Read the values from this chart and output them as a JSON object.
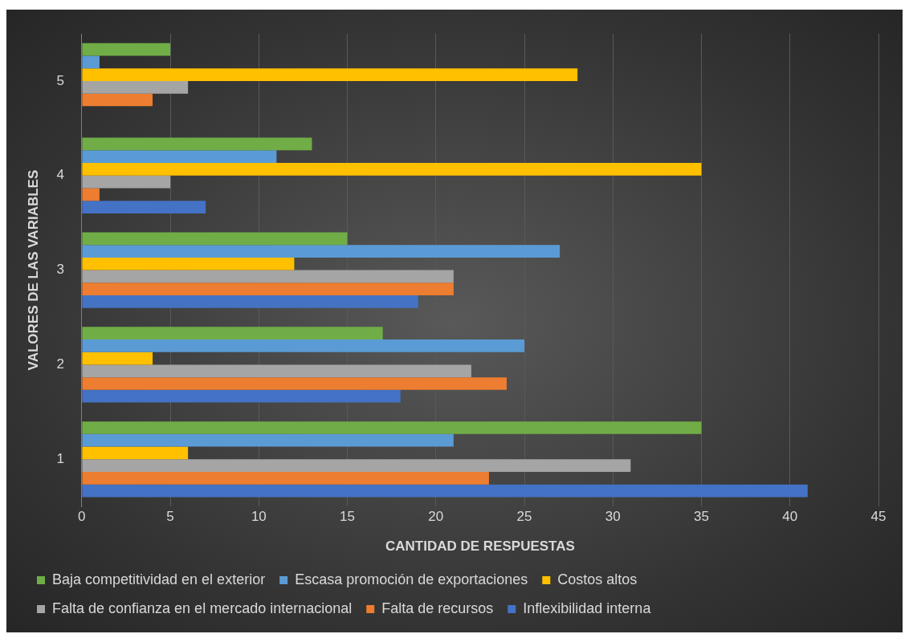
{
  "chart_data": {
    "type": "bar",
    "orientation": "horizontal",
    "xlabel": "CANTIDAD DE RESPUESTAS",
    "ylabel": "VALORES DE LAS VARIABLES",
    "categories": [
      "5",
      "4",
      "3",
      "2",
      "1"
    ],
    "series": [
      {
        "name": "Baja competitividad en el exterior",
        "color": "#70ad47",
        "values": [
          5,
          13,
          15,
          17,
          35
        ]
      },
      {
        "name": "Escasa promoción de exportaciones",
        "color": "#5b9bd5",
        "values": [
          1,
          11,
          27,
          25,
          21
        ]
      },
      {
        "name": "Costos altos",
        "color": "#ffc000",
        "values": [
          28,
          35,
          12,
          4,
          6
        ]
      },
      {
        "name": "Falta de confianza en el mercado internacional",
        "color": "#a5a5a5",
        "values": [
          6,
          5,
          21,
          22,
          31
        ]
      },
      {
        "name": "Falta de recursos",
        "color": "#ed7d31",
        "values": [
          4,
          1,
          21,
          24,
          23
        ]
      },
      {
        "name": "Inflexibilidad interna",
        "color": "#4472c4",
        "values": [
          0,
          7,
          19,
          18,
          41
        ]
      }
    ],
    "xlim": [
      0,
      45
    ],
    "xticks": [
      0,
      5,
      10,
      15,
      20,
      25,
      30,
      35,
      40,
      45
    ],
    "grid": "x",
    "legend": "bottom"
  }
}
